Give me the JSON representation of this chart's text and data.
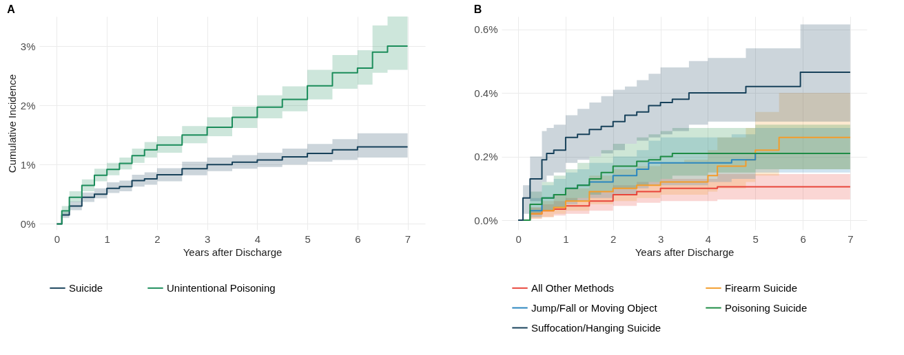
{
  "chart_data": [
    {
      "type": "step",
      "title": "A",
      "xlabel": "Years after Discharge",
      "ylabel": "Cumulative Incidence",
      "xlim": [
        -0.35,
        7.35
      ],
      "xticks": [
        0,
        1,
        2,
        3,
        4,
        5,
        6,
        7
      ],
      "ylim": [
        -0.1,
        3.5
      ],
      "yticks": [
        {
          "value": 0,
          "label": "0%"
        },
        {
          "value": 1,
          "label": "1%"
        },
        {
          "value": 2,
          "label": "2%"
        },
        {
          "value": 3,
          "label": "3%"
        }
      ],
      "grid": true,
      "legend": "bottom",
      "series": [
        {
          "name": "Suicide",
          "color": "#17415a",
          "x": [
            0,
            0.1,
            0.25,
            0.5,
            0.75,
            1,
            1.25,
            1.5,
            1.75,
            2,
            2.5,
            3,
            3.5,
            4,
            4.5,
            5,
            5.5,
            6,
            7
          ],
          "values": [
            0,
            0.15,
            0.3,
            0.45,
            0.5,
            0.6,
            0.63,
            0.73,
            0.76,
            0.83,
            0.93,
            1.0,
            1.04,
            1.08,
            1.13,
            1.19,
            1.25,
            1.3,
            1.3
          ],
          "lower": [
            0,
            0.1,
            0.23,
            0.37,
            0.43,
            0.52,
            0.55,
            0.63,
            0.66,
            0.72,
            0.82,
            0.89,
            0.93,
            0.96,
            1.0,
            1.05,
            1.08,
            1.12,
            1.12
          ],
          "upper": [
            0,
            0.2,
            0.38,
            0.53,
            0.6,
            0.7,
            0.73,
            0.83,
            0.87,
            0.94,
            1.05,
            1.12,
            1.16,
            1.2,
            1.27,
            1.35,
            1.43,
            1.53,
            1.53
          ]
        },
        {
          "name": "Unintentional Poisoning",
          "color": "#1a8c5a",
          "x": [
            0,
            0.1,
            0.25,
            0.5,
            0.75,
            1,
            1.25,
            1.5,
            1.75,
            2,
            2.5,
            3,
            3.5,
            4,
            4.5,
            5,
            5.5,
            6,
            6.3,
            6.6,
            7
          ],
          "values": [
            0,
            0.22,
            0.45,
            0.65,
            0.82,
            0.92,
            1.02,
            1.15,
            1.25,
            1.33,
            1.5,
            1.63,
            1.8,
            1.97,
            2.1,
            2.33,
            2.55,
            2.63,
            2.9,
            3.0,
            3.0
          ],
          "lower": [
            0,
            0.15,
            0.37,
            0.55,
            0.72,
            0.82,
            0.92,
            1.03,
            1.12,
            1.2,
            1.36,
            1.48,
            1.62,
            1.78,
            1.9,
            2.1,
            2.28,
            2.35,
            2.55,
            2.6,
            2.6
          ],
          "upper": [
            0,
            0.3,
            0.55,
            0.75,
            0.93,
            1.03,
            1.12,
            1.27,
            1.38,
            1.48,
            1.65,
            1.8,
            1.98,
            2.17,
            2.32,
            2.6,
            2.85,
            2.93,
            3.35,
            3.5,
            3.5
          ]
        }
      ]
    },
    {
      "type": "step",
      "title": "B",
      "xlabel": "Years after Discharge",
      "xlim": [
        -0.35,
        7.35
      ],
      "xticks": [
        0,
        1,
        2,
        3,
        4,
        5,
        6,
        7
      ],
      "ylim": [
        -0.03,
        0.64
      ],
      "yticks": [
        {
          "value": 0,
          "label": "0.0%"
        },
        {
          "value": 0.2,
          "label": "0.2%"
        },
        {
          "value": 0.4,
          "label": "0.4%"
        },
        {
          "value": 0.6,
          "label": "0.6%"
        }
      ],
      "grid": true,
      "legend": "bottom",
      "series": [
        {
          "name": "All Other Methods",
          "color": "#e8453a",
          "x": [
            0,
            0.25,
            0.5,
            0.75,
            1,
            1.5,
            2,
            2.5,
            3,
            4.2,
            7
          ],
          "values": [
            0,
            0.02,
            0.03,
            0.035,
            0.045,
            0.06,
            0.08,
            0.09,
            0.1,
            0.105,
            0.105
          ],
          "lower": [
            0,
            0.005,
            0.01,
            0.015,
            0.02,
            0.03,
            0.045,
            0.055,
            0.06,
            0.065,
            0.065
          ],
          "upper": [
            0,
            0.04,
            0.05,
            0.06,
            0.07,
            0.09,
            0.11,
            0.12,
            0.13,
            0.145,
            0.145
          ]
        },
        {
          "name": "Firearm Suicide",
          "color": "#f39c2a",
          "x": [
            0,
            0.25,
            0.5,
            0.75,
            1,
            1.5,
            2,
            2.5,
            3,
            3.5,
            4,
            4.2,
            4.8,
            5,
            5.5,
            7
          ],
          "values": [
            0,
            0.02,
            0.03,
            0.04,
            0.06,
            0.09,
            0.1,
            0.11,
            0.12,
            0.12,
            0.14,
            0.17,
            0.19,
            0.22,
            0.26,
            0.26
          ],
          "lower": [
            0,
            0.005,
            0.01,
            0.02,
            0.03,
            0.05,
            0.06,
            0.07,
            0.08,
            0.08,
            0.09,
            0.1,
            0.12,
            0.14,
            0.16,
            0.16
          ],
          "upper": [
            0,
            0.04,
            0.06,
            0.08,
            0.1,
            0.14,
            0.16,
            0.17,
            0.18,
            0.19,
            0.22,
            0.26,
            0.29,
            0.34,
            0.4,
            0.4
          ]
        },
        {
          "name": "Jump/Fall or Moving Object",
          "color": "#2b86bf",
          "x": [
            0,
            0.25,
            0.5,
            0.75,
            1,
            1.25,
            1.5,
            2,
            2.5,
            2.75,
            3,
            4,
            4.5,
            5,
            7
          ],
          "values": [
            0,
            0.03,
            0.07,
            0.08,
            0.1,
            0.11,
            0.12,
            0.14,
            0.16,
            0.18,
            0.18,
            0.18,
            0.19,
            0.21,
            0.21
          ],
          "lower": [
            0,
            0.01,
            0.03,
            0.04,
            0.05,
            0.06,
            0.07,
            0.08,
            0.1,
            0.11,
            0.11,
            0.12,
            0.13,
            0.15,
            0.15
          ],
          "upper": [
            0,
            0.07,
            0.11,
            0.13,
            0.15,
            0.16,
            0.18,
            0.2,
            0.22,
            0.25,
            0.26,
            0.26,
            0.27,
            0.29,
            0.29
          ]
        },
        {
          "name": "Poisoning Suicide",
          "color": "#1e8c45",
          "x": [
            0,
            0.25,
            0.5,
            0.75,
            1,
            1.25,
            1.5,
            1.75,
            2,
            2.5,
            2.75,
            3,
            3.25,
            4,
            5,
            7
          ],
          "values": [
            0,
            0.05,
            0.07,
            0.08,
            0.1,
            0.11,
            0.13,
            0.15,
            0.17,
            0.185,
            0.19,
            0.2,
            0.21,
            0.21,
            0.21,
            0.21
          ],
          "lower": [
            0,
            0.02,
            0.03,
            0.04,
            0.06,
            0.07,
            0.08,
            0.09,
            0.1,
            0.11,
            0.12,
            0.13,
            0.14,
            0.15,
            0.16,
            0.165
          ],
          "upper": [
            0,
            0.09,
            0.12,
            0.14,
            0.16,
            0.18,
            0.2,
            0.22,
            0.24,
            0.26,
            0.27,
            0.28,
            0.29,
            0.29,
            0.3,
            0.295
          ]
        },
        {
          "name": "Suffocation/Hanging Suicide",
          "color": "#17415a",
          "x": [
            0,
            0.1,
            0.25,
            0.5,
            0.6,
            0.75,
            1,
            1.25,
            1.5,
            1.75,
            2,
            2.25,
            2.5,
            2.75,
            3,
            3.25,
            3.6,
            4,
            4.8,
            5.5,
            5.95,
            7
          ],
          "values": [
            0,
            0.07,
            0.13,
            0.19,
            0.21,
            0.22,
            0.26,
            0.27,
            0.285,
            0.295,
            0.31,
            0.33,
            0.34,
            0.36,
            0.37,
            0.38,
            0.4,
            0.4,
            0.42,
            0.42,
            0.465,
            0.465
          ],
          "lower": [
            0,
            0.02,
            0.06,
            0.12,
            0.14,
            0.15,
            0.18,
            0.19,
            0.2,
            0.21,
            0.22,
            0.24,
            0.25,
            0.26,
            0.27,
            0.28,
            0.3,
            0.31,
            0.31,
            0.31,
            0.31,
            0.31
          ],
          "upper": [
            0,
            0.11,
            0.2,
            0.28,
            0.29,
            0.3,
            0.33,
            0.35,
            0.37,
            0.39,
            0.41,
            0.42,
            0.44,
            0.46,
            0.48,
            0.48,
            0.5,
            0.51,
            0.54,
            0.54,
            0.615,
            0.615
          ]
        }
      ]
    }
  ]
}
